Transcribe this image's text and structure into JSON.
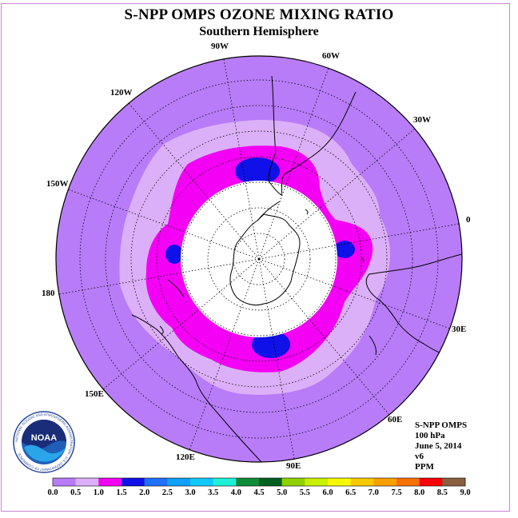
{
  "title": "S-NPP OMPS OZONE MIXING RATIO",
  "subtitle": "Southern Hemisphere",
  "longitude_labels": [
    "90W",
    "60W",
    "30W",
    "0",
    "30E",
    "60E",
    "90E",
    "120E",
    "150E",
    "180",
    "150W",
    "120W"
  ],
  "info": {
    "instrument": "S-NPP OMPS",
    "pressure": "100 hPa",
    "date": "June 5, 2014",
    "version": "v6",
    "units": "PPM"
  },
  "logo_text": "NOAA",
  "logo_ring_text": "NATIONAL OCEANIC AND ATMOSPHERIC ADMINISTRATION · U.S. DEPARTMENT OF COMMERCE",
  "colorbar": {
    "ticks": [
      "0.0",
      "0.5",
      "1.0",
      "1.5",
      "2.0",
      "2.5",
      "3.0",
      "3.5",
      "4.0",
      "4.5",
      "5.0",
      "5.5",
      "6.0",
      "6.5",
      "7.0",
      "7.5",
      "8.0",
      "8.5",
      "9.0"
    ],
    "colors": [
      "#b87cf8",
      "#dcb0f8",
      "#f400f4",
      "#1010e8",
      "#2070f8",
      "#10a0f8",
      "#10c8f8",
      "#20f0d8",
      "#108c38",
      "#006020",
      "#90d000",
      "#c8f000",
      "#f8f800",
      "#f8c800",
      "#f8a000",
      "#f87000",
      "#f80000",
      "#886040"
    ]
  },
  "colors": {
    "outer_field": "#b87cf8",
    "band_05_10": "#dcb0f8",
    "band_10_15": "#f400f4",
    "band_15_20": "#1010e8",
    "polar_night": "#ffffff"
  }
}
